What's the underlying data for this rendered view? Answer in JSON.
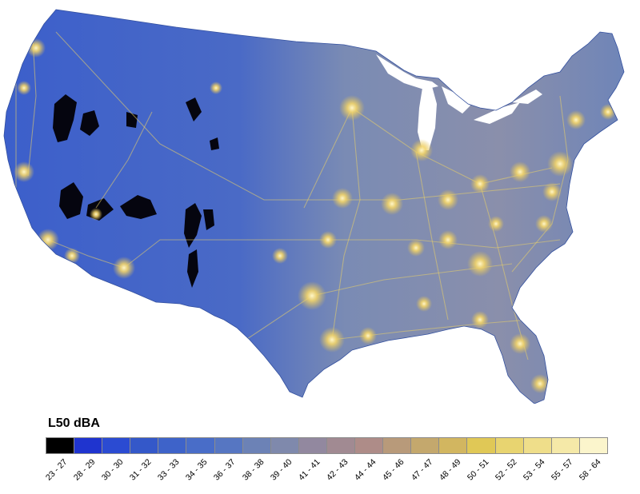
{
  "map": {
    "subject": "L50 sound level map of the contiguous United States",
    "base_color": "#3d63cc",
    "east_color": "#7f8fae"
  },
  "legend": {
    "title": "L50 dBA",
    "bins": [
      {
        "label": "23 - 27",
        "color": "#000000"
      },
      {
        "label": "28 - 29",
        "color": "#1f34cf"
      },
      {
        "label": "30 - 30",
        "color": "#2b4bd2"
      },
      {
        "label": "31 - 32",
        "color": "#3458c9"
      },
      {
        "label": "33 - 33",
        "color": "#3e63c9"
      },
      {
        "label": "34 - 35",
        "color": "#496dc8"
      },
      {
        "label": "36 - 37",
        "color": "#5676c2"
      },
      {
        "label": "38 - 38",
        "color": "#6c82b6"
      },
      {
        "label": "39 - 40",
        "color": "#7f89ac"
      },
      {
        "label": "41 - 41",
        "color": "#92889f"
      },
      {
        "label": "42 - 43",
        "color": "#a18a92"
      },
      {
        "label": "44 - 44",
        "color": "#ae8c88"
      },
      {
        "label": "45 - 46",
        "color": "#b89a7a"
      },
      {
        "label": "47 - 47",
        "color": "#c4a86d"
      },
      {
        "label": "48 - 49",
        "color": "#d2b660"
      },
      {
        "label": "50 - 51",
        "color": "#e0c856"
      },
      {
        "label": "52 - 52",
        "color": "#e8d470"
      },
      {
        "label": "53 - 54",
        "color": "#efde8a"
      },
      {
        "label": "55 - 57",
        "color": "#f5e9a8"
      },
      {
        "label": "58 - 64",
        "color": "#fbf5cc"
      }
    ]
  }
}
